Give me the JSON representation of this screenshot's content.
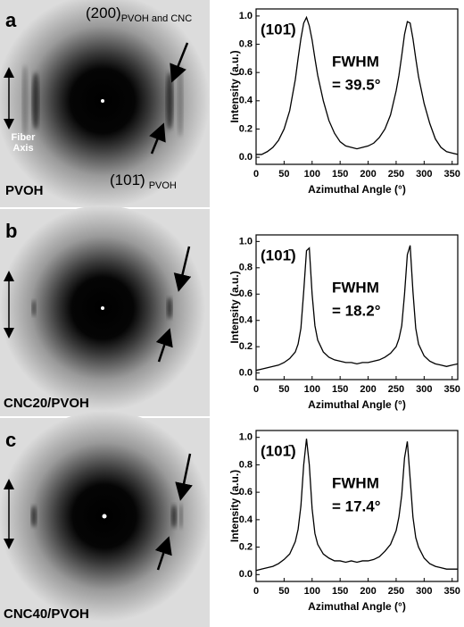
{
  "images": [
    {
      "letter": "a",
      "sample": "PVOH",
      "fiber_axis": "Fiber Axis",
      "arc_outer": "(200)",
      "arc_outer_sub": "PVOH and CNC",
      "arc_inner": "(101̄)",
      "arc_inner_sub": "PVOH"
    },
    {
      "letter": "b",
      "sample": "CNC20/PVOH"
    },
    {
      "letter": "c",
      "sample": "CNC40/PVOH"
    }
  ],
  "chart_data": [
    {
      "type": "line",
      "xlabel": "Azimuthal Angle (°)",
      "ylabel": "Intensity (a.u.)",
      "peak_label": "(101̄)",
      "fwhm_label": "FWHM",
      "fwhm_value": "= 39.5°",
      "x": [
        0,
        10,
        20,
        30,
        40,
        50,
        60,
        70,
        75,
        80,
        85,
        90,
        95,
        100,
        105,
        110,
        120,
        130,
        140,
        150,
        160,
        170,
        180,
        190,
        200,
        210,
        220,
        230,
        240,
        250,
        255,
        260,
        265,
        270,
        275,
        280,
        285,
        290,
        300,
        310,
        320,
        330,
        340,
        350,
        360
      ],
      "series": [
        {
          "color": "#000000",
          "values": [
            0.02,
            0.02,
            0.04,
            0.07,
            0.12,
            0.2,
            0.33,
            0.55,
            0.7,
            0.84,
            0.95,
            0.99,
            0.93,
            0.83,
            0.7,
            0.58,
            0.4,
            0.26,
            0.17,
            0.11,
            0.08,
            0.07,
            0.06,
            0.07,
            0.08,
            0.1,
            0.14,
            0.2,
            0.3,
            0.47,
            0.58,
            0.72,
            0.87,
            0.96,
            0.95,
            0.84,
            0.7,
            0.57,
            0.38,
            0.24,
            0.13,
            0.07,
            0.04,
            0.03,
            0.02
          ]
        }
      ],
      "xlim": [
        0,
        360
      ],
      "ylim": [
        -0.05,
        1.05
      ],
      "xticks": [
        0,
        50,
        100,
        150,
        200,
        250,
        300,
        350
      ],
      "yticks": [
        {
          "value": 0,
          "label": "0.0"
        },
        0.2,
        0.4,
        0.6,
        0.8,
        {
          "value": 1,
          "label": "1.0"
        }
      ]
    },
    {
      "type": "line",
      "xlabel": "Azimuthal Angle (°)",
      "ylabel": "Intensity (a.u.)",
      "peak_label": "(101̄)",
      "fwhm_label": "FWHM",
      "fwhm_value": "= 18.2°",
      "x": [
        0,
        10,
        20,
        30,
        40,
        50,
        60,
        70,
        75,
        80,
        85,
        90,
        95,
        100,
        105,
        110,
        120,
        130,
        140,
        150,
        160,
        170,
        180,
        190,
        200,
        210,
        220,
        230,
        240,
        250,
        255,
        260,
        265,
        270,
        275,
        280,
        285,
        290,
        300,
        310,
        320,
        330,
        340,
        350,
        360
      ],
      "series": [
        {
          "color": "#000000",
          "values": [
            0.02,
            0.03,
            0.04,
            0.05,
            0.06,
            0.08,
            0.11,
            0.16,
            0.22,
            0.34,
            0.62,
            0.93,
            0.95,
            0.6,
            0.36,
            0.25,
            0.16,
            0.12,
            0.1,
            0.09,
            0.08,
            0.08,
            0.07,
            0.08,
            0.08,
            0.09,
            0.1,
            0.12,
            0.15,
            0.2,
            0.26,
            0.36,
            0.6,
            0.9,
            0.97,
            0.62,
            0.34,
            0.22,
            0.13,
            0.09,
            0.07,
            0.06,
            0.05,
            0.06,
            0.07
          ]
        }
      ],
      "xlim": [
        0,
        360
      ],
      "ylim": [
        -0.05,
        1.05
      ],
      "xticks": [
        0,
        50,
        100,
        150,
        200,
        250,
        300,
        350
      ],
      "yticks": [
        {
          "value": 0,
          "label": "0.0"
        },
        0.2,
        0.4,
        0.6,
        0.8,
        {
          "value": 1,
          "label": "1.0"
        }
      ]
    },
    {
      "type": "line",
      "xlabel": "Azimuthal Angle (°)",
      "ylabel": "Intensity (a.u.)",
      "peak_label": "(101̄)",
      "fwhm_label": "FWHM",
      "fwhm_value": "= 17.4°",
      "x": [
        0,
        10,
        20,
        30,
        40,
        50,
        60,
        70,
        75,
        80,
        85,
        90,
        95,
        100,
        105,
        110,
        120,
        130,
        140,
        150,
        160,
        170,
        180,
        190,
        200,
        210,
        220,
        230,
        240,
        250,
        255,
        260,
        265,
        270,
        275,
        280,
        285,
        290,
        300,
        310,
        320,
        330,
        340,
        350,
        360
      ],
      "series": [
        {
          "color": "#000000",
          "values": [
            0.03,
            0.04,
            0.05,
            0.06,
            0.08,
            0.11,
            0.15,
            0.24,
            0.33,
            0.5,
            0.8,
            0.99,
            0.8,
            0.48,
            0.3,
            0.22,
            0.15,
            0.12,
            0.1,
            0.1,
            0.09,
            0.1,
            0.09,
            0.1,
            0.1,
            0.11,
            0.13,
            0.17,
            0.22,
            0.32,
            0.42,
            0.58,
            0.85,
            0.97,
            0.7,
            0.42,
            0.27,
            0.2,
            0.12,
            0.08,
            0.06,
            0.05,
            0.04,
            0.04,
            0.04
          ]
        }
      ],
      "xlim": [
        0,
        360
      ],
      "ylim": [
        -0.05,
        1.05
      ],
      "xticks": [
        0,
        50,
        100,
        150,
        200,
        250,
        300,
        350
      ],
      "yticks": [
        {
          "value": 0,
          "label": "0.0"
        },
        0.2,
        0.4,
        0.6,
        0.8,
        {
          "value": 1,
          "label": "1.0"
        }
      ]
    }
  ]
}
